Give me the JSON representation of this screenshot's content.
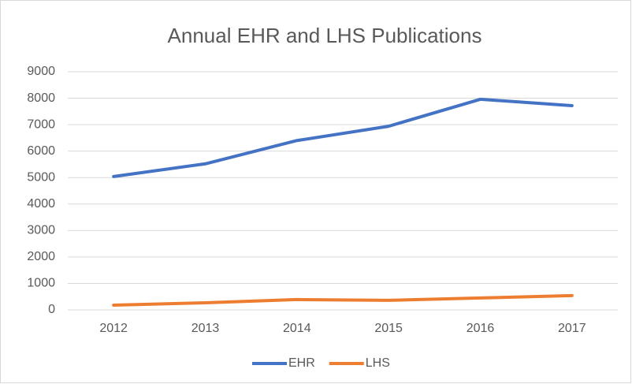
{
  "chart_data": {
    "type": "line",
    "title": "Annual EHR and LHS Publications",
    "categories": [
      "2012",
      "2013",
      "2014",
      "2015",
      "2016",
      "2017"
    ],
    "series": [
      {
        "name": "EHR",
        "color": "#4472c4",
        "values": [
          5040,
          5520,
          6400,
          6940,
          7960,
          7720
        ]
      },
      {
        "name": "LHS",
        "color": "#ed7d31",
        "values": [
          180,
          270,
          390,
          360,
          450,
          540
        ]
      }
    ],
    "ylim": [
      0,
      9000
    ],
    "yticks": [
      0,
      1000,
      2000,
      3000,
      4000,
      5000,
      6000,
      7000,
      8000,
      9000
    ],
    "grid": true,
    "legend": "bottom"
  }
}
